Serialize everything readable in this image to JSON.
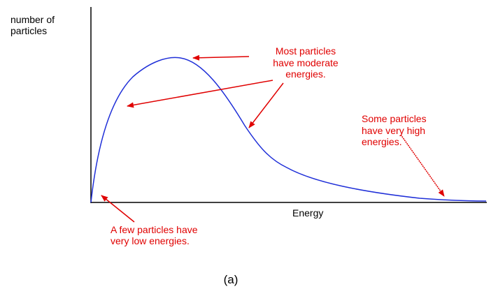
{
  "axis_labels": {
    "y": [
      "number of",
      "particles"
    ],
    "x": "Energy"
  },
  "annotations": [
    {
      "lines": [
        "Most particles",
        "have moderate",
        "energies."
      ]
    },
    {
      "lines": [
        "Some particles",
        "have very high",
        "energies."
      ]
    },
    {
      "lines": [
        "A few particles have",
        "very low energies."
      ]
    }
  ],
  "caption": "(a)"
}
